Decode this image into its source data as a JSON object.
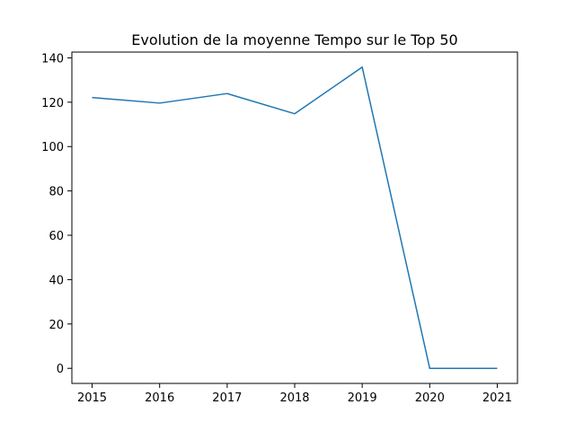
{
  "chart_data": {
    "type": "line",
    "title": "Evolution de la moyenne Tempo sur le Top 50",
    "xlabel": "",
    "ylabel": "",
    "x": [
      2015,
      2016,
      2017,
      2018,
      2019,
      2020,
      2021
    ],
    "series": [
      {
        "values": [
          122.1,
          119.6,
          123.9,
          114.8,
          135.8,
          0,
          0
        ],
        "color": "#1f77b4"
      }
    ],
    "xticks": [
      "2015",
      "2016",
      "2017",
      "2018",
      "2019",
      "2020",
      "2021"
    ],
    "yticks": [
      "0",
      "20",
      "40",
      "60",
      "80",
      "100",
      "120",
      "140"
    ],
    "ylim": [
      -6.8,
      142.6
    ],
    "xlim": [
      2014.7,
      2021.3
    ],
    "grid": false
  }
}
